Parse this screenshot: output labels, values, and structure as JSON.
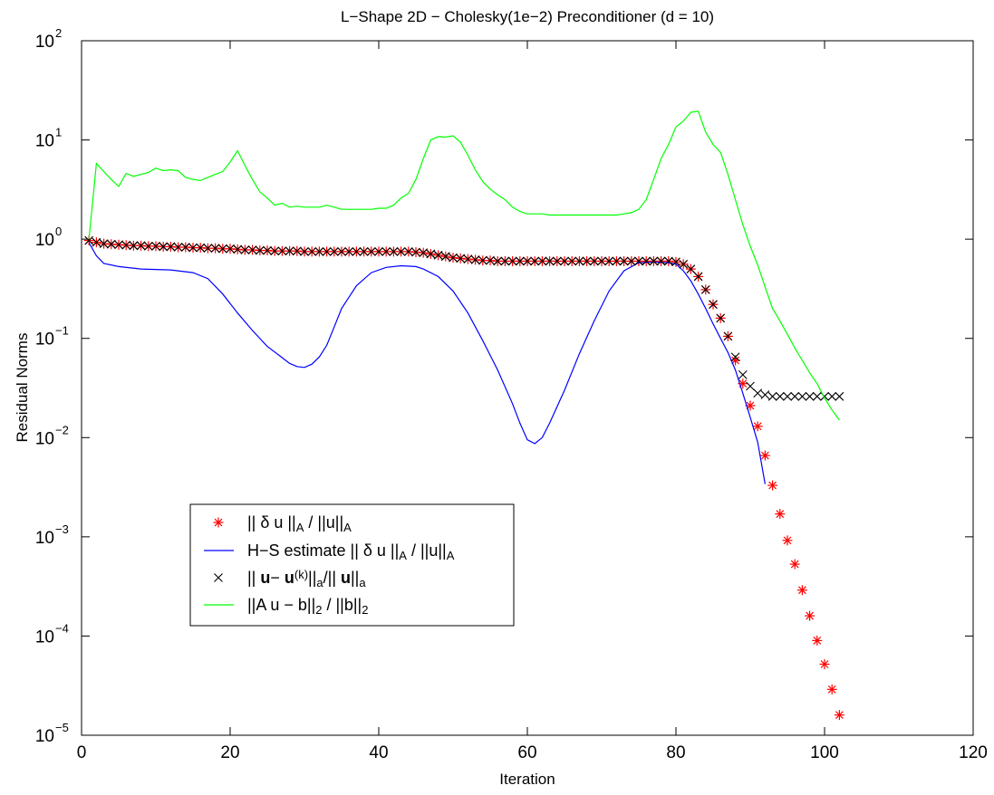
{
  "chart_data": {
    "type": "line",
    "title": "L−Shape  2D − Cholesky(1e−2) Preconditioner (d = 10)",
    "xlabel": "Iteration",
    "ylabel": "Residual Norms",
    "xlim": [
      0,
      120
    ],
    "ylim": [
      1e-05,
      100
    ],
    "yscale": "log",
    "x_ticks": [
      "0",
      "20",
      "40",
      "60",
      "80",
      "100",
      "120"
    ],
    "y_ticks": [
      {
        "base": "10",
        "exp": "−5"
      },
      {
        "base": "10",
        "exp": "−4"
      },
      {
        "base": "10",
        "exp": "−3"
      },
      {
        "base": "10",
        "exp": "−2"
      },
      {
        "base": "10",
        "exp": "−1"
      },
      {
        "base": "10",
        "exp": "0"
      },
      {
        "base": "10",
        "exp": "1"
      },
      {
        "base": "10",
        "exp": "2"
      }
    ],
    "grid": false,
    "legend_position": "lower-left",
    "series": [
      {
        "legend": [
          {
            "t": "|| δ u ||"
          },
          {
            "t": "A",
            "sub": true
          },
          {
            "t": " / ||u||"
          },
          {
            "t": "A",
            "sub": true
          }
        ],
        "color": "#ff0000",
        "marker": "asterisk",
        "x": [
          1,
          2,
          3,
          4,
          5,
          6,
          7,
          8,
          9,
          10,
          11,
          12,
          13,
          14,
          15,
          16,
          17,
          18,
          19,
          20,
          21,
          22,
          23,
          24,
          25,
          26,
          27,
          28,
          29,
          30,
          31,
          32,
          33,
          34,
          35,
          36,
          37,
          38,
          39,
          40,
          41,
          42,
          43,
          44,
          45,
          46,
          47,
          48,
          49,
          50,
          51,
          52,
          53,
          54,
          55,
          56,
          57,
          58,
          59,
          60,
          61,
          62,
          63,
          64,
          65,
          66,
          67,
          68,
          69,
          70,
          71,
          72,
          73,
          74,
          75,
          76,
          77,
          78,
          79,
          80,
          81,
          82,
          83,
          84,
          85,
          86,
          87,
          88,
          89,
          90,
          91,
          92,
          93,
          94,
          95,
          96,
          97,
          98,
          99,
          100,
          101,
          102
        ],
        "y": [
          0.97,
          0.93,
          0.9,
          0.89,
          0.88,
          0.87,
          0.86,
          0.86,
          0.85,
          0.85,
          0.84,
          0.84,
          0.83,
          0.83,
          0.82,
          0.82,
          0.81,
          0.81,
          0.8,
          0.8,
          0.79,
          0.78,
          0.78,
          0.77,
          0.77,
          0.76,
          0.76,
          0.76,
          0.76,
          0.75,
          0.75,
          0.75,
          0.75,
          0.75,
          0.75,
          0.75,
          0.75,
          0.75,
          0.75,
          0.75,
          0.75,
          0.75,
          0.75,
          0.75,
          0.74,
          0.73,
          0.71,
          0.69,
          0.67,
          0.65,
          0.64,
          0.63,
          0.62,
          0.61,
          0.61,
          0.6,
          0.6,
          0.6,
          0.6,
          0.6,
          0.6,
          0.6,
          0.6,
          0.6,
          0.6,
          0.6,
          0.6,
          0.6,
          0.6,
          0.6,
          0.6,
          0.6,
          0.6,
          0.6,
          0.6,
          0.6,
          0.6,
          0.6,
          0.6,
          0.59,
          0.56,
          0.5,
          0.42,
          0.31,
          0.22,
          0.16,
          0.105,
          0.06,
          0.035,
          0.021,
          0.013,
          0.0066,
          0.0033,
          0.0017,
          0.00092,
          0.00053,
          0.00029,
          0.00016,
          9e-05,
          5.2e-05,
          2.9e-05,
          1.6e-05
        ]
      },
      {
        "legend": [
          {
            "t": "H−S estimate || δ u ||"
          },
          {
            "t": "A",
            "sub": true
          },
          {
            "t": " / ||u||"
          },
          {
            "t": "A",
            "sub": true
          }
        ],
        "color": "#0000ff",
        "marker": "line",
        "x": [
          1,
          2,
          3,
          5,
          8,
          12,
          15,
          17,
          19,
          21,
          23,
          25,
          27,
          28,
          29,
          30,
          31,
          32,
          33,
          34,
          35,
          37,
          39,
          41,
          43,
          45,
          46,
          48,
          50,
          52,
          54,
          56,
          58,
          59,
          60,
          61,
          62,
          63,
          65,
          67,
          69,
          71,
          73,
          75,
          77,
          79,
          80,
          81,
          82,
          83,
          84,
          85,
          86,
          87,
          88,
          89,
          90,
          91,
          92
        ],
        "y": [
          0.92,
          0.68,
          0.57,
          0.53,
          0.5,
          0.49,
          0.46,
          0.4,
          0.28,
          0.18,
          0.12,
          0.083,
          0.064,
          0.056,
          0.052,
          0.051,
          0.055,
          0.065,
          0.085,
          0.13,
          0.2,
          0.34,
          0.46,
          0.52,
          0.54,
          0.53,
          0.5,
          0.42,
          0.3,
          0.18,
          0.095,
          0.048,
          0.022,
          0.014,
          0.0095,
          0.0087,
          0.01,
          0.014,
          0.03,
          0.07,
          0.15,
          0.3,
          0.48,
          0.58,
          0.59,
          0.58,
          0.56,
          0.48,
          0.38,
          0.28,
          0.2,
          0.14,
          0.1,
          0.072,
          0.048,
          0.028,
          0.016,
          0.009,
          0.0034
        ]
      },
      {
        "legend": [
          {
            "t": "|| "
          },
          {
            "t": "u",
            "bold": true
          },
          {
            "t": "−  "
          },
          {
            "t": "u",
            "bold": true
          },
          {
            "t": "(k)",
            "sup": true
          },
          {
            "t": "||"
          },
          {
            "t": "a",
            "sub": true
          },
          {
            "t": "/|| "
          },
          {
            "t": "u",
            "bold": true
          },
          {
            "t": "||"
          },
          {
            "t": "a",
            "sub": true
          }
        ],
        "color": "#000000",
        "marker": "x",
        "x": [
          1,
          2,
          3,
          4,
          5,
          6,
          7,
          8,
          9,
          10,
          11,
          12,
          13,
          14,
          15,
          16,
          17,
          18,
          19,
          20,
          21,
          22,
          23,
          24,
          25,
          26,
          27,
          28,
          29,
          30,
          31,
          32,
          33,
          34,
          35,
          36,
          37,
          38,
          39,
          40,
          41,
          42,
          43,
          44,
          45,
          46,
          47,
          48,
          49,
          50,
          51,
          52,
          53,
          54,
          55,
          56,
          57,
          58,
          59,
          60,
          61,
          62,
          63,
          64,
          65,
          66,
          67,
          68,
          69,
          70,
          71,
          72,
          73,
          74,
          75,
          76,
          77,
          78,
          79,
          80,
          81,
          82,
          83,
          84,
          85,
          86,
          87,
          88,
          89,
          90,
          91,
          92,
          93,
          94,
          95,
          96,
          97,
          98,
          99,
          100,
          101,
          102
        ],
        "y": [
          0.97,
          0.93,
          0.9,
          0.89,
          0.88,
          0.87,
          0.86,
          0.86,
          0.85,
          0.85,
          0.84,
          0.84,
          0.83,
          0.83,
          0.82,
          0.82,
          0.81,
          0.81,
          0.8,
          0.8,
          0.79,
          0.78,
          0.78,
          0.77,
          0.77,
          0.76,
          0.76,
          0.76,
          0.76,
          0.75,
          0.75,
          0.75,
          0.75,
          0.75,
          0.75,
          0.75,
          0.75,
          0.75,
          0.75,
          0.75,
          0.75,
          0.75,
          0.75,
          0.75,
          0.74,
          0.73,
          0.71,
          0.69,
          0.67,
          0.65,
          0.64,
          0.63,
          0.62,
          0.61,
          0.61,
          0.6,
          0.6,
          0.6,
          0.6,
          0.6,
          0.6,
          0.6,
          0.6,
          0.6,
          0.6,
          0.6,
          0.6,
          0.6,
          0.6,
          0.6,
          0.6,
          0.6,
          0.6,
          0.6,
          0.6,
          0.6,
          0.6,
          0.6,
          0.6,
          0.59,
          0.56,
          0.5,
          0.42,
          0.31,
          0.22,
          0.16,
          0.105,
          0.065,
          0.043,
          0.033,
          0.028,
          0.027,
          0.026,
          0.026,
          0.026,
          0.026,
          0.026,
          0.026,
          0.026,
          0.026,
          0.026,
          0.026
        ]
      },
      {
        "legend": [
          {
            "t": "||A u − b||"
          },
          {
            "t": "2",
            "sub": true
          },
          {
            "t": " / ||b||"
          },
          {
            "t": "2",
            "sub": true
          }
        ],
        "color": "#00ff00",
        "marker": "line",
        "x": [
          1,
          2,
          3,
          4,
          5,
          6,
          7,
          8,
          9,
          10,
          11,
          12,
          13,
          14,
          15,
          16,
          17,
          18,
          19,
          20,
          21,
          22,
          23,
          24,
          25,
          26,
          27,
          28,
          29,
          30,
          31,
          32,
          33,
          34,
          35,
          36,
          37,
          38,
          39,
          40,
          41,
          42,
          43,
          44,
          45,
          46,
          47,
          48,
          49,
          50,
          51,
          52,
          53,
          54,
          55,
          56,
          57,
          58,
          59,
          60,
          61,
          62,
          63,
          64,
          65,
          66,
          67,
          68,
          69,
          70,
          71,
          72,
          73,
          74,
          75,
          76,
          77,
          78,
          79,
          80,
          81,
          82,
          83,
          84,
          85,
          86,
          87,
          88,
          89,
          90,
          91,
          92,
          93,
          94,
          95,
          96,
          97,
          98,
          99,
          100,
          101,
          102
        ],
        "y": [
          1.0,
          5.8,
          4.8,
          4.0,
          3.4,
          4.6,
          4.3,
          4.5,
          4.7,
          5.2,
          4.9,
          5.0,
          4.9,
          4.2,
          4.0,
          3.9,
          4.2,
          4.5,
          4.8,
          6.0,
          7.8,
          5.5,
          4.0,
          3.0,
          2.6,
          2.2,
          2.3,
          2.1,
          2.15,
          2.1,
          2.1,
          2.1,
          2.2,
          2.1,
          2.0,
          2.0,
          2.0,
          2.0,
          2.0,
          2.05,
          2.05,
          2.2,
          2.6,
          2.9,
          4.0,
          6.5,
          10.0,
          10.8,
          10.7,
          11.0,
          9.5,
          7.0,
          5.0,
          3.8,
          3.2,
          2.8,
          2.5,
          2.1,
          1.9,
          1.8,
          1.8,
          1.8,
          1.75,
          1.75,
          1.75,
          1.75,
          1.75,
          1.75,
          1.75,
          1.75,
          1.75,
          1.75,
          1.8,
          1.85,
          2.0,
          2.5,
          4.0,
          6.5,
          9.0,
          13.5,
          15.5,
          19.0,
          19.5,
          12.0,
          9.0,
          7.5,
          4.5,
          2.5,
          1.4,
          0.85,
          0.55,
          0.33,
          0.2,
          0.15,
          0.11,
          0.08,
          0.06,
          0.045,
          0.035,
          0.025,
          0.019,
          0.015
        ]
      }
    ]
  }
}
